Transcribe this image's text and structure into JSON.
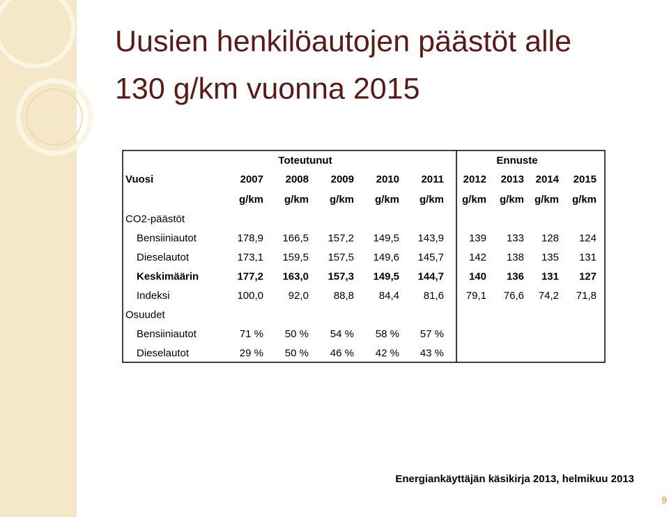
{
  "title": [
    "Uusien henkilöautojen päästöt alle",
    "130 g/km vuonna 2015"
  ],
  "table": {
    "group_headers": [
      "Toteutunut",
      "Ennuste"
    ],
    "year_label": "Vuosi",
    "years": [
      "2007",
      "2008",
      "2009",
      "2010",
      "2011",
      "2012",
      "2013",
      "2014",
      "2015"
    ],
    "units": [
      "g/km",
      "g/km",
      "g/km",
      "g/km",
      "g/km",
      "g/km",
      "g/km",
      "g/km",
      "g/km"
    ],
    "rows": [
      {
        "label": "CO2-päästöt",
        "values": []
      },
      {
        "label": "Bensiiniautot",
        "values": [
          "178,9",
          "166,5",
          "157,2",
          "149,5",
          "143,9",
          "139",
          "133",
          "128",
          "124"
        ]
      },
      {
        "label": "Dieselautot",
        "values": [
          "173,1",
          "159,5",
          "157,5",
          "149,6",
          "145,7",
          "142",
          "138",
          "135",
          "131"
        ]
      },
      {
        "label": "Keskimäärin",
        "values": [
          "177,2",
          "163,0",
          "157,3",
          "149,5",
          "144,7",
          "140",
          "136",
          "131",
          "127"
        ],
        "bold": true
      },
      {
        "label": "Indeksi",
        "values": [
          "100,0",
          "92,0",
          "88,8",
          "84,4",
          "81,6",
          "79,1",
          "76,6",
          "74,2",
          "71,8"
        ]
      },
      {
        "label": "Osuudet",
        "values": []
      },
      {
        "label": "Bensiiniautot",
        "values": [
          "71 %",
          "50 %",
          "54 %",
          "58 %",
          "57 %"
        ]
      },
      {
        "label": "Dieselautot",
        "values": [
          "29 %",
          "50 %",
          "46 %",
          "42 %",
          "43 %"
        ]
      }
    ]
  },
  "footer": {
    "source": "Energiankäyttäjän käsikirja 2013, helmikuu 2013",
    "page": "9"
  }
}
